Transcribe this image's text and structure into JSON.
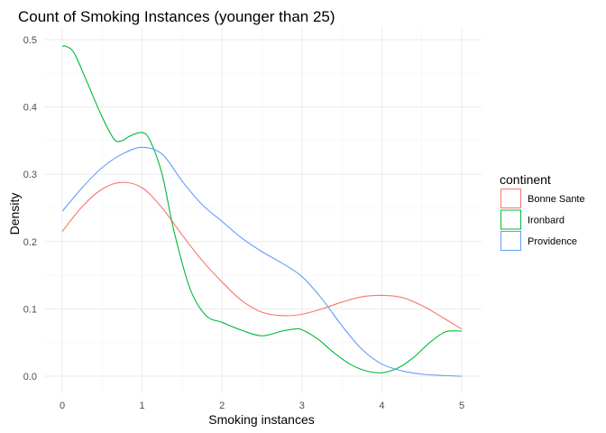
{
  "chart_data": {
    "type": "line",
    "title": "Count of Smoking Instances (younger than 25)",
    "xlabel": "Smoking instances",
    "ylabel": "Density",
    "xlim": [
      0,
      5
    ],
    "ylim": [
      0,
      0.5
    ],
    "xticks": [
      "0",
      "1",
      "2",
      "3",
      "4",
      "5"
    ],
    "yticks": [
      "0.0",
      "0.1",
      "0.2",
      "0.3",
      "0.4",
      "0.5"
    ],
    "grid": true,
    "legend": {
      "title": "continent",
      "position": "right"
    },
    "series": [
      {
        "name": "Bonne Sante",
        "color": "#F8766D",
        "x": [
          0,
          0.25,
          0.5,
          0.75,
          1.0,
          1.25,
          1.5,
          1.75,
          2.0,
          2.25,
          2.5,
          2.75,
          3.0,
          3.25,
          3.5,
          3.75,
          4.0,
          4.25,
          4.5,
          4.75,
          5.0
        ],
        "y": [
          0.215,
          0.252,
          0.278,
          0.288,
          0.28,
          0.25,
          0.21,
          0.172,
          0.14,
          0.112,
          0.095,
          0.09,
          0.092,
          0.1,
          0.11,
          0.118,
          0.12,
          0.117,
          0.105,
          0.088,
          0.07
        ]
      },
      {
        "name": "Ironbard",
        "color": "#00BA38",
        "x": [
          0,
          0.05,
          0.15,
          0.3,
          0.5,
          0.65,
          0.75,
          0.85,
          1.0,
          1.1,
          1.25,
          1.4,
          1.6,
          1.8,
          2.0,
          2.25,
          2.5,
          2.75,
          2.9,
          3.0,
          3.2,
          3.4,
          3.6,
          3.8,
          4.0,
          4.2,
          4.4,
          4.6,
          4.8,
          5.0
        ],
        "y": [
          0.49,
          0.49,
          0.48,
          0.44,
          0.385,
          0.352,
          0.35,
          0.357,
          0.362,
          0.35,
          0.3,
          0.215,
          0.13,
          0.09,
          0.08,
          0.068,
          0.06,
          0.067,
          0.07,
          0.069,
          0.055,
          0.035,
          0.018,
          0.008,
          0.005,
          0.012,
          0.028,
          0.05,
          0.066,
          0.067
        ]
      },
      {
        "name": "Providence",
        "color": "#619CFF",
        "x": [
          0,
          0.25,
          0.5,
          0.75,
          1.0,
          1.25,
          1.5,
          1.75,
          2.0,
          2.25,
          2.5,
          2.75,
          3.0,
          3.25,
          3.5,
          3.75,
          4.0,
          4.25,
          4.5,
          4.75,
          5.0
        ],
        "y": [
          0.245,
          0.28,
          0.31,
          0.33,
          0.34,
          0.33,
          0.29,
          0.255,
          0.23,
          0.205,
          0.185,
          0.168,
          0.148,
          0.115,
          0.075,
          0.04,
          0.018,
          0.008,
          0.003,
          0.001,
          0.0
        ]
      }
    ]
  }
}
